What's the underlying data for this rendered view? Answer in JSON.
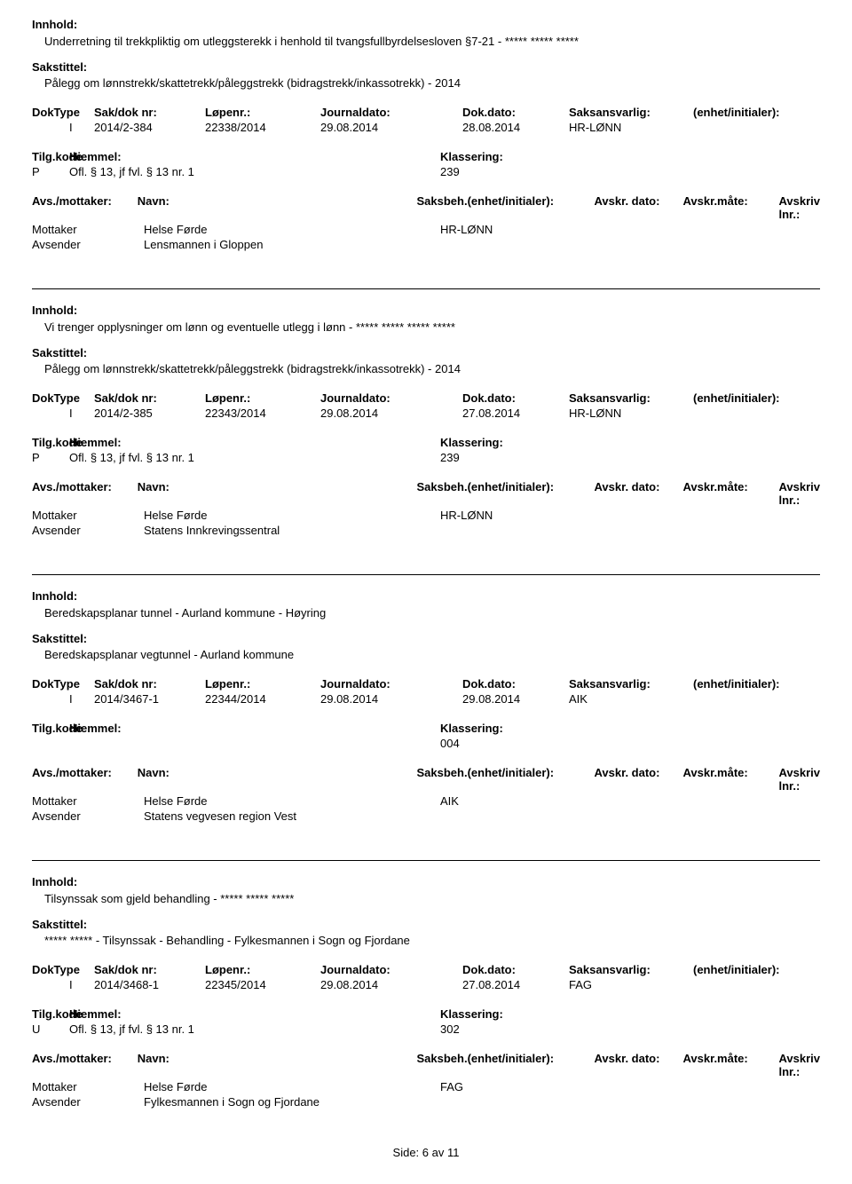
{
  "labels": {
    "innhold": "Innhold:",
    "sakstittel": "Sakstittel:",
    "doktype": "DokType",
    "sakdok": "Sak/dok nr:",
    "lopenr": "Løpenr.:",
    "jdato": "Journaldato:",
    "ddato": "Dok.dato:",
    "saksansv": "Saksansvarlig:",
    "enhet": "(enhet/initialer):",
    "tilgkode": "Tilg.kode",
    "hiemmel": "Hiemmel:",
    "klassering": "Klassering:",
    "avsmott": "Avs./mottaker:",
    "navn": "Navn:",
    "saksbeh": "Saksbeh.(enhet/initialer):",
    "avskrdato": "Avskr. dato:",
    "avskrmate": "Avskr.måte:",
    "avskrlnr": "Avskriv lnr.:",
    "mottaker": "Mottaker",
    "avsender": "Avsender"
  },
  "entries": [
    {
      "innhold": "Underretning til trekkpliktig om utleggsterekk i henhold til tvangsfullbyrdelsesloven §7-21 - ***** ***** *****",
      "sakstittel": "Pålegg om lønnstrekk/skattetrekk/påleggstrekk (bidragstrekk/inkassotrekk) - 2014",
      "doktype": "I",
      "sakdok": "2014/2-384",
      "lopenr": "22338/2014",
      "jdato": "29.08.2014",
      "ddato": "28.08.2014",
      "saksansv": "HR-LØNN",
      "tilgkode": "P",
      "hiemmel": "Ofl. § 13, jf fvl. § 13 nr. 1",
      "klassering": "239",
      "mottaker_navn": "Helse Førde",
      "saksbeh_val": "HR-LØNN",
      "avsender_navn": "Lensmannen i Gloppen"
    },
    {
      "innhold": "Vi trenger opplysninger om lønn og eventuelle utlegg i lønn - ***** ***** ***** *****",
      "sakstittel": "Pålegg om lønnstrekk/skattetrekk/påleggstrekk (bidragstrekk/inkassotrekk) - 2014",
      "doktype": "I",
      "sakdok": "2014/2-385",
      "lopenr": "22343/2014",
      "jdato": "29.08.2014",
      "ddato": "27.08.2014",
      "saksansv": "HR-LØNN",
      "tilgkode": "P",
      "hiemmel": "Ofl. § 13, jf fvl. § 13 nr. 1",
      "klassering": "239",
      "mottaker_navn": "Helse Førde",
      "saksbeh_val": "HR-LØNN",
      "avsender_navn": "Statens Innkrevingssentral"
    },
    {
      "innhold": "Beredskapsplanar tunnel - Aurland kommune - Høyring",
      "sakstittel": "Beredskapsplanar vegtunnel - Aurland kommune",
      "doktype": "I",
      "sakdok": "2014/3467-1",
      "lopenr": "22344/2014",
      "jdato": "29.08.2014",
      "ddato": "29.08.2014",
      "saksansv": "AIK",
      "tilgkode": "",
      "hiemmel": "",
      "klassering": "004",
      "mottaker_navn": "Helse Førde",
      "saksbeh_val": "AIK",
      "avsender_navn": "Statens vegvesen region Vest"
    },
    {
      "innhold": "Tilsynssak som gjeld behandling - ***** ***** *****",
      "sakstittel": "***** ***** - Tilsynssak - Behandling - Fylkesmannen i Sogn og Fjordane",
      "doktype": "I",
      "sakdok": "2014/3468-1",
      "lopenr": "22345/2014",
      "jdato": "29.08.2014",
      "ddato": "27.08.2014",
      "saksansv": "FAG",
      "tilgkode": "U",
      "hiemmel": "Ofl. § 13, jf fvl. § 13 nr. 1",
      "klassering": "302",
      "mottaker_navn": "Helse Førde",
      "saksbeh_val": "FAG",
      "avsender_navn": "Fylkesmannen i Sogn og Fjordane"
    }
  ],
  "footer": "Side: 6 av 11"
}
